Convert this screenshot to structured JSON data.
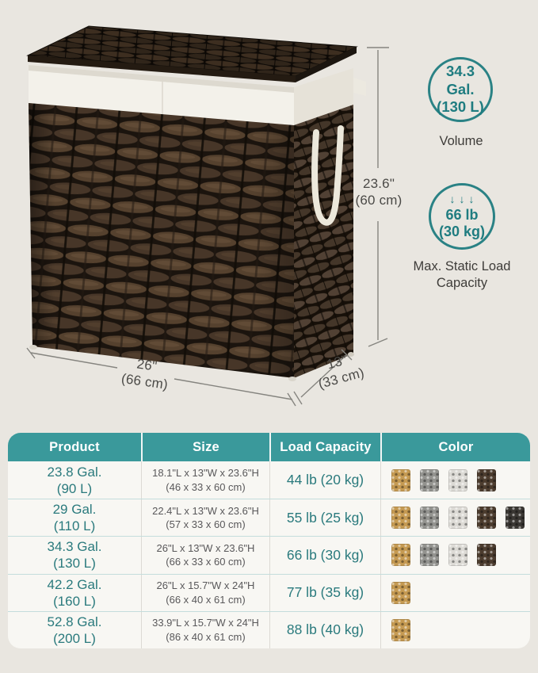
{
  "dimensions": {
    "height": {
      "imperial": "23.6\"",
      "metric": "(60 cm)"
    },
    "width": {
      "imperial": "26\"",
      "metric": "(66 cm)"
    },
    "depth": {
      "imperial": "13\"",
      "metric": "(33 cm)"
    }
  },
  "badges": {
    "volume": {
      "value_line1": "34.3 Gal.",
      "value_line2": "(130 L)",
      "label": "Volume"
    },
    "load": {
      "arrows": "↓↓↓",
      "value_line1": "66 lb",
      "value_line2": "(30 kg)",
      "label_line1": "Max. Static Load",
      "label_line2": "Capacity"
    }
  },
  "table": {
    "headers": [
      "Product",
      "Size",
      "Load Capacity",
      "Color"
    ],
    "rows": [
      {
        "product_line1": "23.8 Gal.",
        "product_line2": "(90 L)",
        "size_line1": "18.1\"L x 13\"W x 23.6\"H",
        "size_line2": "(46 x 33 x 60 cm)",
        "load": "44 lb (20 kg)",
        "swatches": [
          "camel",
          "gray",
          "white",
          "brown"
        ]
      },
      {
        "product_line1": "29 Gal.",
        "product_line2": "(110 L)",
        "size_line1": "22.4\"L x 13\"W x 23.6\"H",
        "size_line2": "(57 x 33 x 60 cm)",
        "load": "55 lb (25 kg)",
        "swatches": [
          "camel",
          "gray",
          "white",
          "brown",
          "black"
        ]
      },
      {
        "product_line1": "34.3 Gal.",
        "product_line2": "(130 L)",
        "size_line1": "26\"L x 13\"W x 23.6\"H",
        "size_line2": "(66 x 33 x 60 cm)",
        "load": "66 lb (30 kg)",
        "swatches": [
          "camel",
          "gray",
          "white",
          "brown"
        ]
      },
      {
        "product_line1": "42.2 Gal.",
        "product_line2": "(160 L)",
        "size_line1": "26\"L x 15.7\"W x 24\"H",
        "size_line2": "(66 x 40 x 61 cm)",
        "load": "77 lb (35 kg)",
        "swatches": [
          "camel"
        ]
      },
      {
        "product_line1": "52.8 Gal.",
        "product_line2": "(200 L)",
        "size_line1": "33.9\"L x 15.7\"W x 24\"H",
        "size_line2": "(86 x 40 x 61 cm)",
        "load": "88 lb (40 kg)",
        "swatches": [
          "camel"
        ]
      }
    ]
  },
  "swatch_colors": {
    "camel": "#c59a52",
    "gray": "#93938f",
    "white": "#dcdad5",
    "brown": "#4c3c2e",
    "black": "#3a3733"
  },
  "theme": {
    "page_bg": "#e9e6e0",
    "table_bg": "#f8f7f3",
    "teal_header": "#3a999b",
    "teal_text": "#2a7a7d",
    "badge_ring": "#2a8285",
    "dim_text": "#4b4a47",
    "size_text": "#59585a"
  }
}
